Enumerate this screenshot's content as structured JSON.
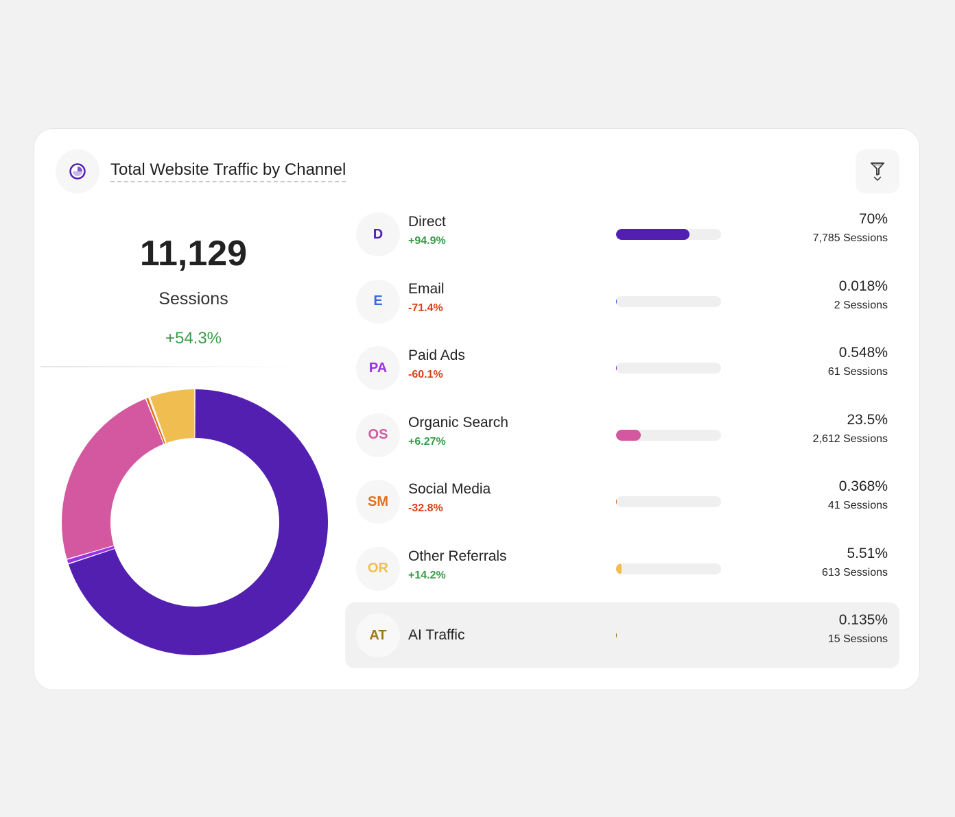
{
  "header": {
    "title": "Total Website Traffic by Channel",
    "icon": "pie-chart-icon",
    "filter_icon": "filter-funnel-icon"
  },
  "summary": {
    "total": "11,129",
    "label": "Sessions",
    "change": "+54.3%"
  },
  "chart_data": {
    "type": "pie",
    "categories": [
      "Direct",
      "Email",
      "Paid Ads",
      "Organic Search",
      "Social Media",
      "AI Traffic",
      "Other Referrals"
    ],
    "values": [
      70,
      0.018,
      0.548,
      23.5,
      0.368,
      0.135,
      5.51
    ],
    "colors": [
      "#521fb0",
      "#3b6be0",
      "#9b30e8",
      "#d4589f",
      "#e0701f",
      "#a0761a",
      "#f0be50"
    ]
  },
  "channels": [
    {
      "abbr": "D",
      "name": "Direct",
      "change": "+94.9%",
      "dir": "pos",
      "percent": "70%",
      "share": 70,
      "sessions": "7,785 Sessions",
      "color": "#521fb0"
    },
    {
      "abbr": "E",
      "name": "Email",
      "change": "-71.4%",
      "dir": "neg",
      "percent": "0.018%",
      "share": 0.018,
      "sessions": "2 Sessions",
      "color": "#3b6be0"
    },
    {
      "abbr": "PA",
      "name": "Paid Ads",
      "change": "-60.1%",
      "dir": "neg",
      "percent": "0.548%",
      "share": 0.548,
      "sessions": "61 Sessions",
      "color": "#9b30e8"
    },
    {
      "abbr": "OS",
      "name": "Organic Search",
      "change": "+6.27%",
      "dir": "pos",
      "percent": "23.5%",
      "share": 23.5,
      "sessions": "2,612 Sessions",
      "color": "#d4589f"
    },
    {
      "abbr": "SM",
      "name": "Social Media",
      "change": "-32.8%",
      "dir": "neg",
      "percent": "0.368%",
      "share": 0.368,
      "sessions": "41 Sessions",
      "color": "#e0701f"
    },
    {
      "abbr": "OR",
      "name": "Other Referrals",
      "change": "+14.2%",
      "dir": "pos",
      "percent": "5.51%",
      "share": 5.51,
      "sessions": "613 Sessions",
      "color": "#f0be50"
    },
    {
      "abbr": "AT",
      "name": "AI Traffic",
      "change": "",
      "dir": "",
      "percent": "0.135%",
      "share": 0.135,
      "sessions": "15 Sessions",
      "color": "#a0761a"
    }
  ]
}
